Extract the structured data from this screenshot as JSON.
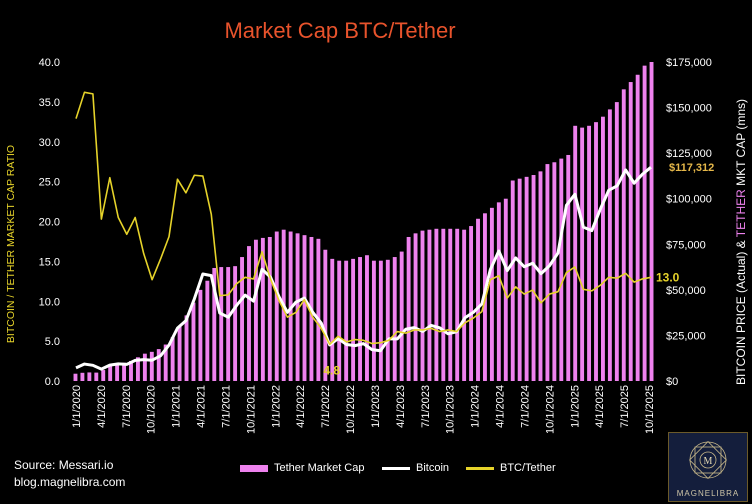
{
  "source": "Source: Messari.io",
  "blog": "blog.magnelibra.com",
  "logo_text": "MAGNELIBRA",
  "logo_icon": "compass-star-logo",
  "chart_data": {
    "type": "bar+line",
    "title": "Market Cap BTC/Tether",
    "left_axis": {
      "label": "BITCOIN / TETHER MARKET CAP RATIO",
      "range": [
        0,
        40
      ],
      "ticks": [
        "0.0",
        "5.0",
        "10.0",
        "15.0",
        "20.0",
        "25.0",
        "30.0",
        "35.0",
        "40.0"
      ],
      "color": "#e6d32a"
    },
    "right_axis": {
      "label_prefix": "BITCOIN PRICE (Actual) & ",
      "label_highlight": "TETHER",
      "label_suffix": " MKT CAP (mns)",
      "range": [
        0,
        175000
      ],
      "ticks": [
        "$0",
        "$25,000",
        "$50,000",
        "$75,000",
        "$100,000",
        "$125,000",
        "$150,000",
        "$175,000"
      ],
      "highlight_color": "#ee82ee"
    },
    "x_tick_labels": [
      "1/1/2020",
      "4/1/2020",
      "7/1/2020",
      "10/1/2020",
      "1/1/2021",
      "4/1/2021",
      "7/1/2021",
      "10/1/2021",
      "1/1/2022",
      "4/1/2022",
      "7/1/2022",
      "10/1/2022",
      "1/1/2023",
      "4/1/2023",
      "7/1/2023",
      "10/1/2023",
      "1/1/2024",
      "4/1/2024",
      "7/1/2024",
      "10/1/2024",
      "1/1/2025",
      "4/1/2025",
      "7/1/2025",
      "10/1/2025"
    ],
    "series": [
      {
        "name": "Tether Market Cap",
        "type": "bar",
        "axis": "right",
        "color": "#ee82ee",
        "values": [
          4000,
          4500,
          4700,
          4600,
          6000,
          8500,
          9500,
          10000,
          11000,
          13000,
          15000,
          16000,
          17500,
          20000,
          24000,
          30000,
          36000,
          43000,
          50000,
          55000,
          62000,
          62500,
          62500,
          63000,
          68000,
          74000,
          77500,
          78500,
          79000,
          82000,
          83000,
          82000,
          81000,
          80000,
          79000,
          78000,
          72000,
          67000,
          66000,
          66000,
          67000,
          68000,
          69000,
          66000,
          66000,
          66500,
          68000,
          71000,
          79000,
          81000,
          82500,
          83000,
          83500,
          83500,
          83500,
          83500,
          83000,
          85000,
          89000,
          92000,
          95000,
          98000,
          100000,
          110000,
          111000,
          112000,
          113000,
          115000,
          119000,
          120000,
          122000,
          124000,
          140000,
          139000,
          140000,
          142000,
          145000,
          149000,
          153000,
          160000,
          164000,
          168000,
          173000,
          175000
        ]
      },
      {
        "name": "Bitcoin",
        "type": "line",
        "axis": "right",
        "color": "#ffffff",
        "values": [
          7200,
          9300,
          8600,
          6500,
          8700,
          9400,
          9100,
          11300,
          11700,
          11400,
          13800,
          19700,
          29000,
          33100,
          45100,
          58700,
          57800,
          37300,
          35000,
          41500,
          47100,
          43800,
          61300,
          57000,
          46300,
          37700,
          43200,
          45500,
          37700,
          31800,
          19800,
          23300,
          20000,
          19400,
          20500,
          17200,
          16600,
          23100,
          23100,
          28400,
          29300,
          27200,
          30500,
          29200,
          25900,
          27000,
          34700,
          37700,
          42300,
          61100,
          71300,
          60600,
          67500,
          62700,
          64600,
          58900,
          63300,
          70200,
          96400,
          102400,
          84400,
          82500,
          94200,
          104600,
          107100,
          115800,
          108500,
          113500,
          117312
        ],
        "end_label": "$117,312"
      },
      {
        "name": "BTC/Tether",
        "type": "line",
        "axis": "left",
        "color": "#e6d32a",
        "values": [
          32.9,
          36.2,
          36.0,
          20.3,
          25.5,
          20.5,
          18.4,
          20.5,
          16.0,
          12.7,
          15.3,
          18.1,
          25.3,
          23.6,
          25.8,
          25.7,
          20.9,
          10.7,
          10.8,
          12.2,
          13.0,
          12.8,
          16.2,
          12.8,
          10.1,
          8.0,
          8.6,
          10.2,
          8.0,
          6.6,
          4.6,
          5.6,
          4.9,
          5.2,
          5.1,
          4.7,
          4.8,
          5.1,
          6.2,
          6.0,
          6.4,
          6.4,
          6.6,
          6.2,
          6.4,
          6.2,
          7.3,
          7.9,
          8.7,
          12.7,
          13.2,
          10.4,
          11.8,
          10.9,
          11.4,
          9.8,
          10.9,
          11.2,
          13.6,
          14.3,
          11.5,
          11.3,
          12.0,
          13.0,
          12.9,
          13.5,
          12.4,
          12.8,
          13.0
        ],
        "min_label": "4.8",
        "end_label": "13.0"
      }
    ],
    "legend": [
      "Tether Market Cap",
      "Bitcoin",
      "BTC/Tether"
    ]
  }
}
